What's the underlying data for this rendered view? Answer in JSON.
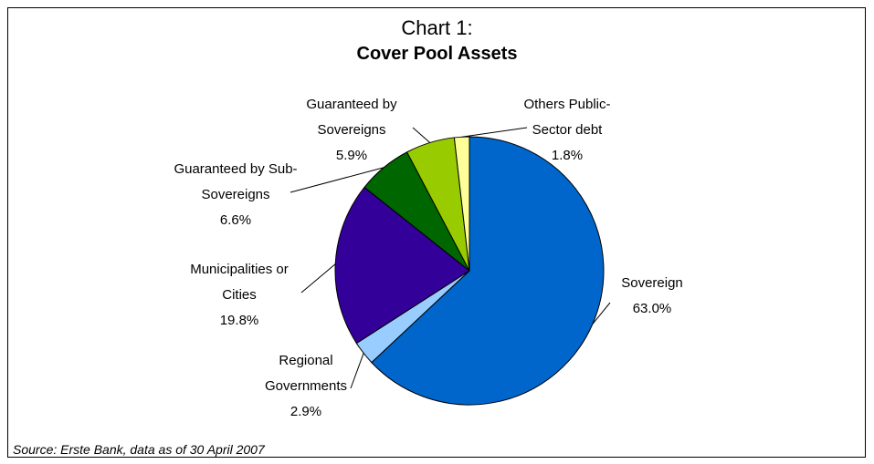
{
  "chart_data": {
    "type": "pie",
    "title": "Chart 1:",
    "subtitle": "Cover Pool Assets",
    "source": "Source: Erste Bank, data as of 30 April 2007",
    "categories": [
      "Sovereign",
      "Regional Governments",
      "Municipalities or Cities",
      "Guaranteed by Sub-Sovereigns",
      "Guaranteed by Sovereigns",
      "Others Public-Sector debt"
    ],
    "values": [
      63.0,
      2.9,
      19.8,
      6.6,
      5.9,
      1.8
    ],
    "value_labels": [
      "63.0%",
      "2.9%",
      "19.8%",
      "6.6%",
      "5.9%",
      "1.8%"
    ],
    "colors": [
      "#0066cc",
      "#99ccff",
      "#330099",
      "#006600",
      "#99cc00",
      "#ffff99"
    ]
  }
}
